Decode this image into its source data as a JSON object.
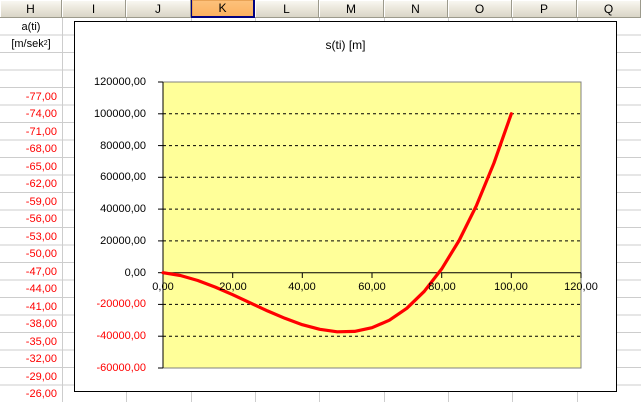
{
  "sheet": {
    "column_headers": [
      "H",
      "I",
      "J",
      "K",
      "L",
      "M",
      "N",
      "O",
      "P",
      "Q"
    ],
    "selected_column": "K",
    "h_column": {
      "row1": "a(ti)",
      "row2_base": "[m/sek",
      "row2_sup": "2",
      "row2_end": "]",
      "values": [
        "-77,00",
        "-74,00",
        "-71,00",
        "-68,00",
        "-65,00",
        "-62,00",
        "-59,00",
        "-56,00",
        "-53,00",
        "-50,00",
        "-47,00",
        "-44,00",
        "-41,00",
        "-38,00",
        "-35,00",
        "-32,00",
        "-29,00",
        "-26,00"
      ]
    }
  },
  "chart": {
    "title": "s(ti) [m]",
    "y_axis_labels": [
      "120000,00",
      "100000,00",
      "80000,00",
      "60000,00",
      "40000,00",
      "20000,00",
      "0,00",
      "-20000,00",
      "-40000,00",
      "-60000,00"
    ],
    "x_axis_labels": [
      "0,00",
      "20,00",
      "40,00",
      "60,00",
      "80,00",
      "100,00",
      "120,00"
    ],
    "colors": {
      "plot_background": "#FFFF99",
      "series": "#FF0000",
      "negative_labels": "#FF0000",
      "selected_header": "#FBB261",
      "gridline": "#000000"
    }
  },
  "chart_data": {
    "type": "line",
    "title": "s(ti) [m]",
    "x": [
      0,
      5,
      10,
      15,
      20,
      25,
      30,
      35,
      40,
      45,
      50,
      55,
      60,
      65,
      70,
      75,
      80,
      85,
      90,
      95,
      100
    ],
    "values": [
      0,
      -1788,
      -4920,
      -9055,
      -13847,
      -18955,
      -24033,
      -28740,
      -32730,
      -35660,
      -37187,
      -36968,
      -34658,
      -29915,
      -22394,
      -11752,
      2355,
      20270,
      42339,
      68903,
      100000
    ],
    "xlabel": "",
    "ylabel": "",
    "xlim": [
      0,
      120
    ],
    "ylim": [
      -60000,
      120000
    ],
    "x_tick_step": 20,
    "y_tick_step": 20000,
    "grid": "dashed-horizontal",
    "legend": false,
    "series_color": "#FF0000"
  }
}
